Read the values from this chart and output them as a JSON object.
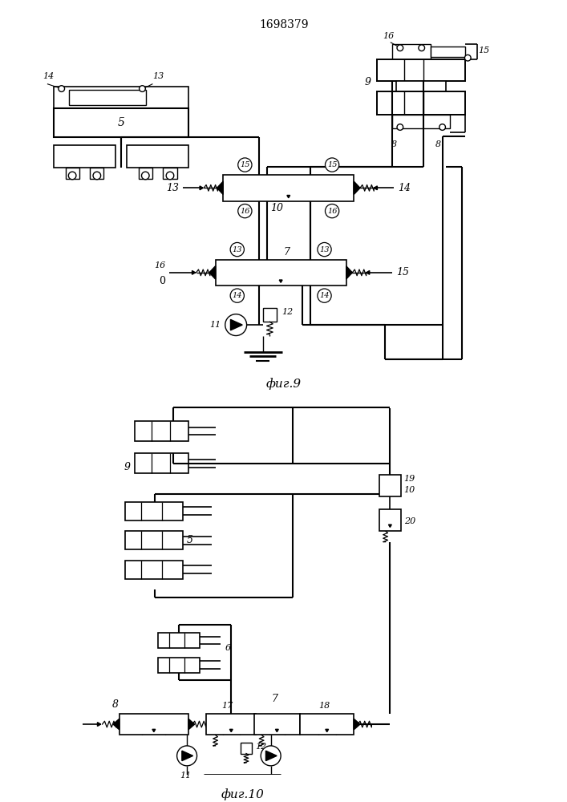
{
  "title": "1698379",
  "fig9_label": "фиг.9",
  "fig10_label": "фиг.10",
  "bg_color": "#ffffff",
  "line_color": "#000000"
}
